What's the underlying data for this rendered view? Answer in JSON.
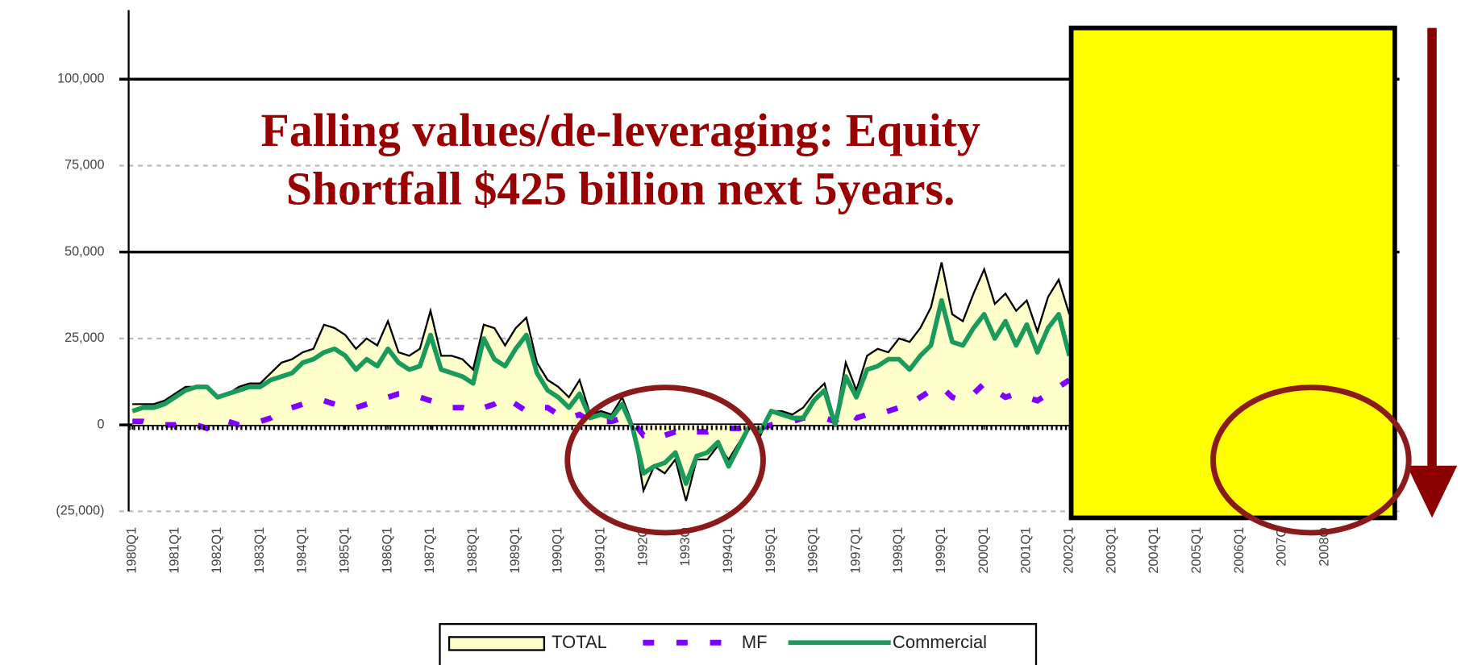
{
  "chart_data": {
    "type": "line",
    "annotations": [
      "Falling values/de-leveraging: Equity",
      "Shortfall $425 billion next 5years."
    ],
    "x": [
      1980,
      1980.25,
      1980.5,
      1980.75,
      1981,
      1981.25,
      1981.5,
      1981.75,
      1982,
      1982.25,
      1982.5,
      1982.75,
      1983,
      1983.25,
      1983.5,
      1983.75,
      1984,
      1984.25,
      1984.5,
      1984.75,
      1985,
      1985.25,
      1985.5,
      1985.75,
      1986,
      1986.25,
      1986.5,
      1986.75,
      1987,
      1987.25,
      1987.5,
      1987.75,
      1988,
      1988.25,
      1988.5,
      1988.75,
      1989,
      1989.25,
      1989.5,
      1989.75,
      1990,
      1990.25,
      1990.5,
      1990.75,
      1991,
      1991.25,
      1991.5,
      1991.75,
      1992,
      1992.25,
      1992.5,
      1992.75,
      1993,
      1993.25,
      1993.5,
      1993.75,
      1994,
      1994.25,
      1994.5,
      1994.75,
      1995,
      1995.25,
      1995.5,
      1995.75,
      1996,
      1996.25,
      1996.5,
      1996.75,
      1997,
      1997.25,
      1997.5,
      1997.75,
      1998,
      1998.25,
      1998.5,
      1998.75,
      1999,
      1999.25,
      1999.5,
      1999.75,
      2000,
      2000.25,
      2000.5,
      2000.75,
      2001,
      2001.25,
      2001.5,
      2001.75,
      2002
    ],
    "series": [
      {
        "name": "TOTAL",
        "color": "#ffffcc",
        "values": [
          6000,
          6000,
          6000,
          7000,
          9000,
          11000,
          11000,
          11000,
          8000,
          9000,
          11000,
          12000,
          12000,
          15000,
          18000,
          19000,
          21000,
          22000,
          29000,
          28000,
          26000,
          22000,
          25000,
          23000,
          30000,
          21000,
          20000,
          22000,
          33000,
          20000,
          20000,
          19000,
          16000,
          29000,
          28000,
          23000,
          28000,
          31000,
          18000,
          13000,
          11000,
          8000,
          13000,
          3000,
          4000,
          3000,
          8000,
          0,
          -19000,
          -12000,
          -14000,
          -10000,
          -22000,
          -10000,
          -10000,
          -6000,
          -10000,
          -5000,
          0,
          -3000,
          4000,
          4000,
          3000,
          5000,
          9000,
          12000,
          1000,
          18000,
          10000,
          20000,
          22000,
          21000,
          25000,
          24000,
          28000,
          34000,
          47000,
          32000,
          30000,
          38000,
          45000,
          35000,
          38000,
          33000,
          36000,
          27000,
          37000,
          42000,
          32000
        ]
      },
      {
        "name": "MF",
        "color": "#7f00ff",
        "values": [
          1000,
          1000,
          0,
          0,
          0,
          1000,
          0,
          -1000,
          1000,
          1000,
          0,
          0,
          1000,
          2000,
          4000,
          5000,
          6000,
          6000,
          7000,
          6000,
          5000,
          5000,
          6000,
          7000,
          8000,
          9000,
          9000,
          8000,
          7000,
          6000,
          5000,
          5000,
          4000,
          5000,
          6000,
          8000,
          6000,
          4000,
          5000,
          5000,
          3000,
          2000,
          3000,
          1000,
          1000,
          1000,
          2000,
          1000,
          -3000,
          -2000,
          -3000,
          -2000,
          -3000,
          -2000,
          -2000,
          -1000,
          -1000,
          -1000,
          0,
          -1000,
          0,
          1000,
          1000,
          2000,
          2000,
          2000,
          1000,
          4000,
          2000,
          3000,
          3000,
          4000,
          5000,
          6000,
          8000,
          10000,
          11000,
          8000,
          7000,
          9000,
          12000,
          10000,
          8000,
          9000,
          8000,
          7000,
          9000,
          11000,
          13000
        ]
      },
      {
        "name": "Commercial",
        "color": "#1a9b5c",
        "values": [
          4000,
          5000,
          5000,
          6000,
          8000,
          10000,
          11000,
          11000,
          8000,
          9000,
          10000,
          11000,
          11000,
          13000,
          14000,
          15000,
          18000,
          19000,
          21000,
          22000,
          20000,
          16000,
          19000,
          17000,
          22000,
          18000,
          16000,
          17000,
          26000,
          16000,
          15000,
          14000,
          12000,
          25000,
          19000,
          17000,
          22000,
          26000,
          15000,
          10000,
          8000,
          5000,
          9000,
          2000,
          3000,
          2000,
          6000,
          -1000,
          -14000,
          -12000,
          -11000,
          -8000,
          -17000,
          -9000,
          -8000,
          -5000,
          -12000,
          -6000,
          0,
          -2000,
          4000,
          3000,
          2000,
          2000,
          7000,
          10000,
          0,
          14000,
          8000,
          16000,
          17000,
          19000,
          19000,
          16000,
          20000,
          23000,
          36000,
          24000,
          23000,
          28000,
          32000,
          25000,
          30000,
          23000,
          29000,
          21000,
          28000,
          32000,
          20000
        ]
      }
    ],
    "xlim": [
      1980,
      2009.75
    ],
    "xticks": [
      {
        "value": 1980,
        "label": "1980Q1"
      },
      {
        "value": 1981,
        "label": "1981Q1"
      },
      {
        "value": 1982,
        "label": "1982Q1"
      },
      {
        "value": 1983,
        "label": "1983Q1"
      },
      {
        "value": 1984,
        "label": "1984Q1"
      },
      {
        "value": 1985,
        "label": "1985Q1"
      },
      {
        "value": 1986,
        "label": "1986Q1"
      },
      {
        "value": 1987,
        "label": "1987Q1"
      },
      {
        "value": 1988,
        "label": "1988Q1"
      },
      {
        "value": 1989,
        "label": "1989Q1"
      },
      {
        "value": 1990,
        "label": "1990Q1"
      },
      {
        "value": 1991,
        "label": "1991Q1"
      },
      {
        "value": 1992,
        "label": "1992Q"
      },
      {
        "value": 1993,
        "label": "1993Q"
      },
      {
        "value": 1994,
        "label": "1994Q1"
      },
      {
        "value": 1995,
        "label": "1995Q1"
      },
      {
        "value": 1996,
        "label": "1996Q1"
      },
      {
        "value": 1997,
        "label": "1997Q1"
      },
      {
        "value": 1998,
        "label": "1998Q1"
      },
      {
        "value": 1999,
        "label": "1999Q1"
      },
      {
        "value": 2000,
        "label": "2000Q1"
      },
      {
        "value": 2001,
        "label": "2001Q1"
      },
      {
        "value": 2002,
        "label": "2002Q1"
      },
      {
        "value": 2003,
        "label": "2003Q1"
      },
      {
        "value": 2004,
        "label": "2004Q1"
      },
      {
        "value": 2005,
        "label": "2005Q1"
      },
      {
        "value": 2006,
        "label": "2006Q1"
      },
      {
        "value": 2007,
        "label": "2007Q"
      },
      {
        "value": 2008,
        "label": "2008Q"
      }
    ],
    "ylim": [
      -25000,
      120000
    ],
    "yticks": [
      {
        "value": 100000,
        "label": "100,000"
      },
      {
        "value": 75000,
        "label": "75,000"
      },
      {
        "value": 50000,
        "label": "50,000"
      },
      {
        "value": 25000,
        "label": "25,000"
      },
      0,
      {
        "value": -25000,
        "label": "(25,000)"
      }
    ],
    "grid": true
  }
}
